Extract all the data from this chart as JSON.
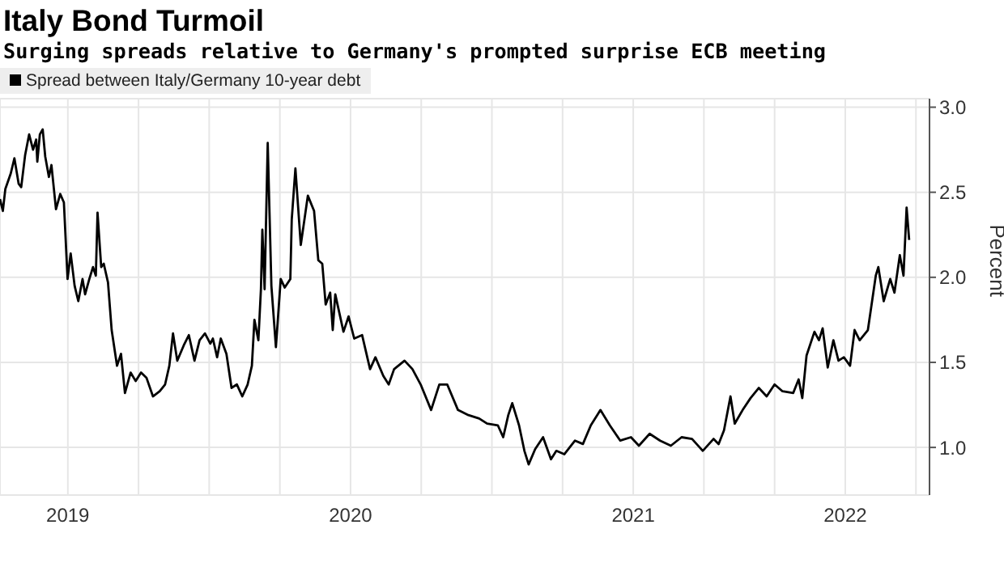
{
  "chart_data": {
    "type": "line",
    "title": "Italy Bond Turmoil",
    "subtitle": "Surging spreads relative to Germany's prompted surprise ECB meeting",
    "ylabel": "Percent",
    "series": [
      {
        "name": "Spread between Italy/Germany 10-year debt",
        "color": "#000000",
        "x": [
          2019.26,
          2019.27,
          2019.279,
          2019.298,
          2019.311,
          2019.326,
          2019.335,
          2019.349,
          2019.363,
          2019.377,
          2019.388,
          2019.392,
          2019.401,
          2019.411,
          2019.42,
          2019.433,
          2019.442,
          2019.458,
          2019.473,
          2019.486,
          2019.499,
          2019.51,
          2019.524,
          2019.537,
          2019.552,
          2019.561,
          2019.576,
          2019.589,
          2019.599,
          2019.605,
          2019.618,
          2019.627,
          2019.642,
          2019.655,
          2019.674,
          2019.688,
          2019.702,
          2019.722,
          2019.74,
          2019.759,
          2019.778,
          2019.801,
          2019.825,
          2019.844,
          2019.859,
          2019.872,
          2019.887,
          2019.91,
          2019.928,
          2019.948,
          2019.966,
          2019.985,
          2020.004,
          2020.013,
          2020.028,
          2020.041,
          2020.061,
          2020.079,
          2020.098,
          2020.117,
          2020.136,
          2020.151,
          2020.16,
          2020.174,
          2020.183,
          2020.188,
          2020.196,
          2020.207,
          2020.22,
          2020.236,
          2020.253,
          2020.267,
          2020.287,
          2020.292,
          2020.305,
          2020.324,
          2020.349,
          2020.371,
          2020.386,
          2020.4,
          2020.412,
          2020.428,
          2020.437,
          2020.446,
          2020.475,
          2020.493,
          2020.513,
          2020.541,
          2020.569,
          2020.588,
          2020.616,
          2020.635,
          2020.654,
          2020.691,
          2020.719,
          2020.748,
          2020.785,
          2020.814,
          2020.842,
          2020.88,
          2020.917,
          2020.955,
          2020.983,
          2021.021,
          2021.04,
          2021.058,
          2021.072,
          2021.096,
          2021.115,
          2021.13,
          2021.153,
          2021.181,
          2021.209,
          2021.228,
          2021.256,
          2021.294,
          2021.322,
          2021.35,
          2021.384,
          2021.417,
          2021.454,
          2021.492,
          2021.52,
          2021.558,
          2021.595,
          2021.633,
          2021.671,
          2021.708,
          2021.746,
          2021.784,
          2021.802,
          2021.821,
          2021.844,
          2021.859,
          2021.887,
          2021.915,
          2021.944,
          2021.972,
          2022.0,
          2022.028,
          2022.066,
          2022.085,
          2022.098,
          2022.113,
          2022.141,
          2022.157,
          2022.17,
          2022.188,
          2022.208,
          2022.226,
          2022.245,
          2022.267,
          2022.283,
          2022.301,
          2022.33,
          2022.358,
          2022.367,
          2022.386,
          2022.409,
          2022.424,
          2022.443,
          2022.456,
          2022.467,
          2022.476
        ],
        "values": [
          2.46,
          2.39,
          2.52,
          2.61,
          2.7,
          2.55,
          2.53,
          2.72,
          2.84,
          2.75,
          2.81,
          2.68,
          2.84,
          2.87,
          2.71,
          2.59,
          2.66,
          2.4,
          2.49,
          2.44,
          1.99,
          2.14,
          1.95,
          1.86,
          1.99,
          1.9,
          1.99,
          2.06,
          2.01,
          2.38,
          2.06,
          2.08,
          1.97,
          1.69,
          1.48,
          1.55,
          1.32,
          1.44,
          1.39,
          1.44,
          1.41,
          1.3,
          1.33,
          1.37,
          1.48,
          1.67,
          1.51,
          1.6,
          1.66,
          1.51,
          1.63,
          1.67,
          1.61,
          1.64,
          1.53,
          1.64,
          1.55,
          1.35,
          1.37,
          1.3,
          1.37,
          1.48,
          1.75,
          1.63,
          1.93,
          2.28,
          1.93,
          2.79,
          1.95,
          1.59,
          1.99,
          1.94,
          1.99,
          2.34,
          2.64,
          2.19,
          2.48,
          2.39,
          2.1,
          2.08,
          1.84,
          1.91,
          1.69,
          1.9,
          1.68,
          1.77,
          1.64,
          1.66,
          1.46,
          1.53,
          1.42,
          1.37,
          1.46,
          1.51,
          1.46,
          1.37,
          1.22,
          1.37,
          1.37,
          1.22,
          1.19,
          1.17,
          1.14,
          1.13,
          1.06,
          1.19,
          1.26,
          1.13,
          0.98,
          0.9,
          0.99,
          1.06,
          0.93,
          0.98,
          0.96,
          1.04,
          1.02,
          1.13,
          1.22,
          1.13,
          1.04,
          1.06,
          1.01,
          1.08,
          1.04,
          1.01,
          1.06,
          1.05,
          0.98,
          1.05,
          1.02,
          1.1,
          1.3,
          1.14,
          1.22,
          1.29,
          1.35,
          1.3,
          1.37,
          1.33,
          1.32,
          1.4,
          1.29,
          1.54,
          1.68,
          1.63,
          1.7,
          1.47,
          1.63,
          1.51,
          1.53,
          1.48,
          1.69,
          1.63,
          1.69,
          2.01,
          2.06,
          1.86,
          1.99,
          1.91,
          2.13,
          2.01,
          2.41,
          2.22
        ]
      }
    ],
    "xlim": [
      2019.26,
      2022.548
    ],
    "xticks": [
      {
        "value": 2019.5,
        "label": "2019"
      },
      {
        "value": 2019.75,
        "label": null
      },
      {
        "value": 2020,
        "label": null
      },
      {
        "value": 2020.25,
        "label": null
      },
      {
        "value": 2020.5,
        "label": "2020"
      },
      {
        "value": 2020.75,
        "label": null
      },
      {
        "value": 2021,
        "label": null
      },
      {
        "value": 2021.25,
        "label": null
      },
      {
        "value": 2021.5,
        "label": "2021"
      },
      {
        "value": 2021.75,
        "label": null
      },
      {
        "value": 2022,
        "label": null
      },
      {
        "value": 2022.25,
        "label": "2022"
      },
      {
        "value": 2022.5,
        "label": null
      }
    ],
    "ylim": [
      0.72,
      3.05
    ],
    "yticks": [
      {
        "value": 1,
        "label": "1.0"
      },
      {
        "value": 1.5,
        "label": "1.5"
      },
      {
        "value": 2,
        "label": "2.0"
      },
      {
        "value": 2.5,
        "label": "2.5"
      },
      {
        "value": 3,
        "label": "3.0"
      }
    ],
    "grid": true,
    "legend": "top left",
    "marker": "none",
    "line_style": "solid"
  }
}
